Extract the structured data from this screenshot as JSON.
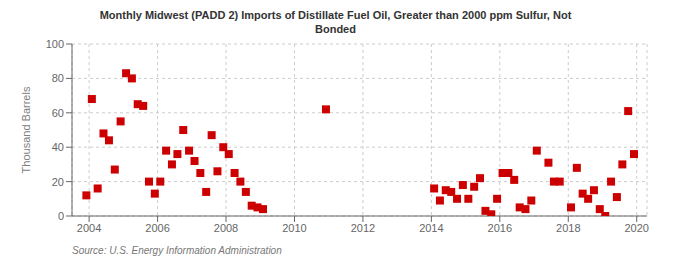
{
  "chart_data": {
    "type": "scatter",
    "title": "Monthly Midwest (PADD 2) Imports of Distillate Fuel Oil, Greater than 2000 ppm Sulfur, Not\nBonded",
    "ylabel": "Thousand Barrels",
    "annotations": [
      "Source: U.S. Energy Information Administration"
    ],
    "color": "#cc0000",
    "marker": "square",
    "grid": true,
    "xlim": [
      2003.5,
      2020.3
    ],
    "xticks": [
      2004,
      2006,
      2008,
      2010,
      2012,
      2014,
      2016,
      2018,
      2020
    ],
    "ylim": [
      0,
      100
    ],
    "yticks": [
      0,
      20,
      40,
      60,
      80,
      100
    ],
    "x": [
      2003.92,
      2004.08,
      2004.25,
      2004.42,
      2004.58,
      2004.75,
      2004.92,
      2005.08,
      2005.25,
      2005.42,
      2005.58,
      2005.75,
      2005.92,
      2006.08,
      2006.25,
      2006.42,
      2006.58,
      2006.75,
      2006.92,
      2007.08,
      2007.25,
      2007.42,
      2007.58,
      2007.75,
      2007.92,
      2008.08,
      2008.25,
      2008.42,
      2008.58,
      2008.75,
      2008.92,
      2009.08,
      2010.92,
      2014.08,
      2014.25,
      2014.42,
      2014.58,
      2014.75,
      2014.92,
      2015.08,
      2015.25,
      2015.42,
      2015.58,
      2015.75,
      2015.92,
      2016.08,
      2016.25,
      2016.42,
      2016.58,
      2016.75,
      2016.92,
      2017.08,
      2017.42,
      2017.58,
      2017.75,
      2018.08,
      2018.25,
      2018.42,
      2018.58,
      2018.75,
      2018.92,
      2019.08,
      2019.25,
      2019.42,
      2019.58,
      2019.75,
      2019.92
    ],
    "values": [
      12,
      68,
      16,
      48,
      44,
      27,
      55,
      83,
      80,
      65,
      64,
      20,
      13,
      20,
      38,
      30,
      36,
      50,
      38,
      32,
      25,
      14,
      47,
      26,
      40,
      36,
      25,
      20,
      14,
      6,
      5,
      4,
      62,
      16,
      9,
      15,
      14,
      10,
      18,
      10,
      17,
      22,
      3,
      1,
      10,
      25,
      25,
      21,
      5,
      4,
      9,
      38,
      31,
      20,
      20,
      5,
      28,
      13,
      10,
      15,
      4,
      0,
      20,
      11,
      30,
      61,
      36
    ]
  }
}
